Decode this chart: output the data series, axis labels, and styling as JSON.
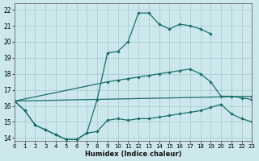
{
  "xlabel": "Humidex (Indice chaleur)",
  "bg_color": "#cce8ec",
  "grid_color": "#aacdd4",
  "line_color": "#1a6e68",
  "xlim": [
    0,
    23
  ],
  "ylim": [
    13.8,
    22.4
  ],
  "xticks": [
    0,
    1,
    2,
    3,
    4,
    5,
    6,
    7,
    8,
    9,
    10,
    11,
    12,
    13,
    14,
    15,
    16,
    17,
    18,
    19,
    20,
    21,
    22,
    23
  ],
  "yticks": [
    14,
    15,
    16,
    17,
    18,
    19,
    20,
    21,
    22
  ],
  "line1_x": [
    0,
    1,
    2,
    3,
    4,
    5,
    6,
    7,
    8,
    9,
    10,
    11,
    12,
    13,
    14,
    15,
    16,
    17,
    18,
    19,
    20,
    21,
    22,
    23
  ],
  "line1_y": [
    16.3,
    15.7,
    14.8,
    14.5,
    14.2,
    13.9,
    13.9,
    14.3,
    14.4,
    15.1,
    15.2,
    15.1,
    15.2,
    15.2,
    15.3,
    15.4,
    15.5,
    15.6,
    15.7,
    15.9,
    16.1,
    15.5,
    15.2,
    15.0
  ],
  "line2_x": [
    0,
    1,
    2,
    3,
    4,
    5,
    6,
    7,
    8,
    9,
    10,
    11,
    12,
    13,
    14,
    15,
    16,
    17,
    18,
    19
  ],
  "line2_y": [
    16.3,
    15.7,
    14.8,
    14.5,
    14.2,
    13.9,
    13.9,
    14.3,
    16.4,
    19.3,
    19.4,
    20.0,
    21.8,
    21.8,
    21.1,
    20.8,
    21.1,
    21.0,
    20.8,
    20.5
  ],
  "line3_x": [
    0,
    23
  ],
  "line3_y": [
    16.3,
    16.6
  ],
  "line4_x": [
    0,
    9,
    10,
    11,
    12,
    13,
    14,
    15,
    16,
    17,
    18,
    19,
    20,
    21,
    22,
    23
  ],
  "line4_y": [
    16.3,
    17.5,
    17.6,
    17.7,
    17.8,
    17.9,
    18.0,
    18.1,
    18.2,
    18.3,
    18.0,
    17.5,
    16.6,
    16.6,
    16.5,
    16.4
  ]
}
